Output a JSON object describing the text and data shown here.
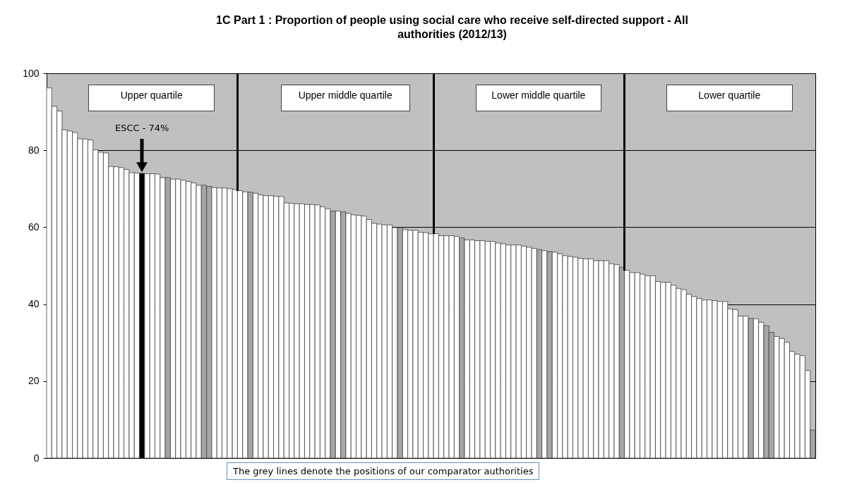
{
  "chart_data": {
    "type": "bar",
    "title": "1C Part 1 : Proportion of people using social care who receive self-directed support - All authorities (2012/13)",
    "categories": [
      null,
      null,
      null,
      null,
      null,
      null,
      null,
      null,
      null,
      null,
      null,
      null,
      null,
      null,
      null,
      null,
      null,
      null,
      null,
      null,
      null,
      null,
      null,
      null,
      null,
      null,
      null,
      null,
      null,
      null,
      null,
      null,
      null,
      null,
      null,
      null,
      null,
      null,
      null,
      null,
      null,
      null,
      null,
      null,
      null,
      null,
      null,
      null,
      null,
      null,
      null,
      null,
      null,
      null,
      null,
      null,
      null,
      null,
      null,
      null,
      null,
      null,
      null,
      null,
      null,
      null,
      null,
      null,
      null,
      null,
      null,
      null,
      null,
      null,
      null,
      null,
      null,
      null,
      null,
      null,
      null,
      null,
      null,
      null,
      null,
      null,
      null,
      null,
      null,
      null,
      null,
      null,
      null,
      null,
      null,
      null,
      null,
      null,
      null,
      null,
      null,
      null,
      null,
      null,
      null,
      null,
      null,
      null,
      null,
      null,
      null,
      null,
      null,
      null,
      null,
      null,
      null,
      null,
      null,
      null,
      null,
      null,
      null,
      null,
      null,
      null,
      null,
      null,
      null,
      null,
      null,
      null,
      null,
      null,
      null,
      null,
      null,
      null,
      null,
      null,
      null,
      null,
      null,
      null,
      null,
      null,
      null,
      null,
      null
    ],
    "values": [
      96.2,
      91.4,
      90.2,
      85.3,
      85.0,
      84.6,
      83.0,
      82.9,
      82.7,
      80.1,
      79.5,
      79.3,
      75.8,
      75.7,
      75.5,
      75.0,
      74.2,
      74.1,
      74.0,
      73.9,
      73.9,
      73.8,
      72.9,
      72.9,
      72.5,
      72.5,
      72.2,
      71.9,
      71.5,
      70.9,
      70.9,
      70.6,
      70.3,
      70.2,
      70.2,
      70.0,
      69.8,
      69.5,
      69.2,
      69.1,
      68.8,
      68.4,
      68.2,
      68.2,
      68.0,
      68.0,
      66.3,
      66.2,
      66.1,
      66.1,
      65.9,
      65.9,
      65.8,
      65.3,
      64.8,
      64.2,
      64.2,
      64.0,
      63.6,
      63.2,
      63.1,
      62.9,
      62.0,
      61.0,
      60.8,
      60.6,
      60.6,
      59.9,
      59.9,
      59.4,
      59.2,
      59.2,
      58.7,
      58.6,
      58.3,
      58.3,
      57.8,
      57.8,
      57.8,
      57.6,
      57.2,
      56.7,
      56.7,
      56.5,
      56.5,
      56.3,
      56.3,
      55.9,
      55.7,
      55.4,
      55.4,
      55.4,
      55.1,
      54.8,
      54.5,
      54.2,
      53.9,
      53.7,
      53.5,
      53.1,
      52.6,
      52.4,
      52.2,
      51.9,
      51.8,
      51.8,
      51.3,
      51.3,
      51.3,
      50.5,
      50.3,
      49.6,
      48.8,
      48.2,
      48.2,
      47.8,
      47.4,
      47.4,
      45.9,
      45.7,
      45.7,
      44.9,
      44.1,
      43.8,
      42.6,
      42.0,
      41.5,
      41.1,
      41.1,
      40.9,
      40.7,
      40.7,
      38.8,
      38.6,
      36.9,
      36.9,
      36.3,
      36.2,
      35.3,
      34.4,
      32.7,
      31.6,
      31.1,
      30.1,
      27.7,
      27.0,
      26.6,
      22.8,
      7.3
    ],
    "colors": [
      "#ffffff",
      "#ffffff",
      "#ffffff",
      "#ffffff",
      "#ffffff",
      "#ffffff",
      "#ffffff",
      "#ffffff",
      "#ffffff",
      "#ffffff",
      "#ffffff",
      "#ffffff",
      "#ffffff",
      "#ffffff",
      "#ffffff",
      "#ffffff",
      "#ffffff",
      "#ffffff",
      "#000000",
      "#ffffff",
      "#ffffff",
      "#ffffff",
      "#ffffff",
      "#a6a6a6",
      "#ffffff",
      "#ffffff",
      "#ffffff",
      "#ffffff",
      "#ffffff",
      "#ffffff",
      "#a6a6a6",
      "#a6a6a6",
      "#ffffff",
      "#ffffff",
      "#ffffff",
      "#ffffff",
      "#ffffff",
      "#ffffff",
      "#ffffff",
      "#a6a6a6",
      "#ffffff",
      "#ffffff",
      "#ffffff",
      "#ffffff",
      "#ffffff",
      "#ffffff",
      "#ffffff",
      "#ffffff",
      "#ffffff",
      "#ffffff",
      "#ffffff",
      "#ffffff",
      "#ffffff",
      "#ffffff",
      "#ffffff",
      "#a6a6a6",
      "#ffffff",
      "#a6a6a6",
      "#ffffff",
      "#ffffff",
      "#ffffff",
      "#ffffff",
      "#ffffff",
      "#ffffff",
      "#ffffff",
      "#ffffff",
      "#ffffff",
      "#ffffff",
      "#a6a6a6",
      "#ffffff",
      "#ffffff",
      "#ffffff",
      "#ffffff",
      "#ffffff",
      "#ffffff",
      "#ffffff",
      "#ffffff",
      "#ffffff",
      "#ffffff",
      "#ffffff",
      "#a6a6a6",
      "#ffffff",
      "#ffffff",
      "#ffffff",
      "#ffffff",
      "#ffffff",
      "#ffffff",
      "#ffffff",
      "#ffffff",
      "#ffffff",
      "#ffffff",
      "#ffffff",
      "#ffffff",
      "#ffffff",
      "#ffffff",
      "#a6a6a6",
      "#ffffff",
      "#a6a6a6",
      "#ffffff",
      "#ffffff",
      "#ffffff",
      "#ffffff",
      "#ffffff",
      "#ffffff",
      "#ffffff",
      "#ffffff",
      "#ffffff",
      "#ffffff",
      "#ffffff",
      "#ffffff",
      "#ffffff",
      "#a6a6a6",
      "#ffffff",
      "#ffffff",
      "#ffffff",
      "#ffffff",
      "#ffffff",
      "#ffffff",
      "#ffffff",
      "#ffffff",
      "#ffffff",
      "#ffffff",
      "#ffffff",
      "#ffffff",
      "#ffffff",
      "#ffffff",
      "#ffffff",
      "#ffffff",
      "#ffffff",
      "#ffffff",
      "#ffffff",
      "#ffffff",
      "#ffffff",
      "#ffffff",
      "#ffffff",
      "#ffffff",
      "#a6a6a6",
      "#ffffff",
      "#ffffff",
      "#a6a6a6",
      "#a6a6a6",
      "#ffffff",
      "#ffffff",
      "#ffffff",
      "#ffffff",
      "#ffffff",
      "#ffffff",
      "#ffffff",
      "#a6a6a6"
    ],
    "ylim": [
      0,
      100
    ],
    "yticks": [
      0,
      20,
      40,
      60,
      80,
      100
    ],
    "tick_labels": "y",
    "grid": "y",
    "annotations": [
      "ESCC - 74%",
      "Upper quartile",
      "Upper middle quartile",
      "Lower middle quartile",
      "Lower quartile",
      "The grey lines denote the positions of our comparator authorities"
    ]
  }
}
